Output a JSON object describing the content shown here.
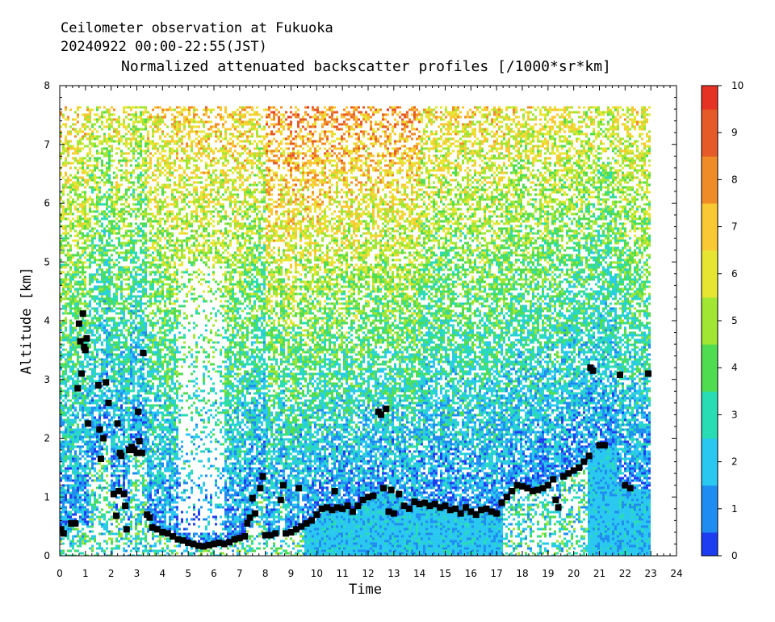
{
  "header": {
    "line1": "Ceilometer observation at Fukuoka",
    "line2": "20240922  00:00-22:55(JST)",
    "title": "Normalized attenuated backscatter profiles [/1000*sr*km]"
  },
  "chart_data": {
    "type": "heatmap",
    "title": "Normalized attenuated backscatter profiles [/1000*sr*km]",
    "xlabel": "Time",
    "ylabel": "Altitude [km]",
    "xlim": [
      0,
      24
    ],
    "ylim": [
      0,
      8
    ],
    "x_ticks": [
      "0",
      "1",
      "2",
      "3",
      "4",
      "5",
      "6",
      "7",
      "8",
      "9",
      "10",
      "11",
      "12",
      "13",
      "14",
      "15",
      "16",
      "17",
      "18",
      "19",
      "20",
      "21",
      "22",
      "23",
      "24"
    ],
    "y_ticks": [
      "0",
      "1",
      "2",
      "3",
      "4",
      "5",
      "6",
      "7",
      "8"
    ],
    "data_extent": {
      "x": [
        0,
        22.92
      ],
      "y": [
        0,
        7.65
      ]
    },
    "colorbar": {
      "range": [
        0,
        10
      ],
      "ticks": [
        "0",
        "1",
        "2",
        "3",
        "4",
        "5",
        "6",
        "7",
        "8",
        "9",
        "10"
      ],
      "colors": [
        "#1e3cf0",
        "#1e8cf0",
        "#28c8f0",
        "#28dcb4",
        "#50dc50",
        "#a0e632",
        "#e6e632",
        "#fac832",
        "#f08c28",
        "#e65a28",
        "#e63223"
      ]
    },
    "low_signal_colors": [
      "#ffffff",
      "#1e6ef0",
      "#28b4f0"
    ],
    "cloud_base_heights": [
      {
        "x": 0.05,
        "y": 0.45
      },
      {
        "x": 0.15,
        "y": 0.38
      },
      {
        "x": 0.45,
        "y": 0.55
      },
      {
        "x": 0.6,
        "y": 0.55
      },
      {
        "x": 0.7,
        "y": 2.85
      },
      {
        "x": 0.75,
        "y": 3.95
      },
      {
        "x": 0.8,
        "y": 3.65
      },
      {
        "x": 0.85,
        "y": 3.1
      },
      {
        "x": 0.9,
        "y": 4.12
      },
      {
        "x": 0.95,
        "y": 3.55
      },
      {
        "x": 1.0,
        "y": 3.5
      },
      {
        "x": 1.05,
        "y": 3.7
      },
      {
        "x": 1.1,
        "y": 2.25
      },
      {
        "x": 1.5,
        "y": 2.9
      },
      {
        "x": 1.55,
        "y": 2.15
      },
      {
        "x": 1.6,
        "y": 1.65
      },
      {
        "x": 1.7,
        "y": 2.0
      },
      {
        "x": 1.8,
        "y": 2.95
      },
      {
        "x": 1.9,
        "y": 2.6
      },
      {
        "x": 2.1,
        "y": 1.05
      },
      {
        "x": 2.2,
        "y": 0.68
      },
      {
        "x": 2.25,
        "y": 2.25
      },
      {
        "x": 2.3,
        "y": 1.1
      },
      {
        "x": 2.35,
        "y": 1.75
      },
      {
        "x": 2.4,
        "y": 1.7
      },
      {
        "x": 2.5,
        "y": 1.05
      },
      {
        "x": 2.55,
        "y": 0.85
      },
      {
        "x": 2.6,
        "y": 0.45
      },
      {
        "x": 2.7,
        "y": 1.8
      },
      {
        "x": 2.8,
        "y": 1.85
      },
      {
        "x": 2.9,
        "y": 1.8
      },
      {
        "x": 3.0,
        "y": 1.75
      },
      {
        "x": 3.05,
        "y": 2.45
      },
      {
        "x": 3.1,
        "y": 1.95
      },
      {
        "x": 3.2,
        "y": 1.75
      },
      {
        "x": 3.25,
        "y": 3.45
      },
      {
        "x": 3.4,
        "y": 0.7
      },
      {
        "x": 3.5,
        "y": 0.65
      },
      {
        "x": 3.6,
        "y": 0.48
      },
      {
        "x": 3.8,
        "y": 0.45
      },
      {
        "x": 4.0,
        "y": 0.4
      },
      {
        "x": 4.2,
        "y": 0.38
      },
      {
        "x": 4.4,
        "y": 0.33
      },
      {
        "x": 4.6,
        "y": 0.28
      },
      {
        "x": 4.8,
        "y": 0.26
      },
      {
        "x": 5.0,
        "y": 0.22
      },
      {
        "x": 5.2,
        "y": 0.2
      },
      {
        "x": 5.4,
        "y": 0.17
      },
      {
        "x": 5.6,
        "y": 0.16
      },
      {
        "x": 5.8,
        "y": 0.18
      },
      {
        "x": 6.0,
        "y": 0.2
      },
      {
        "x": 6.2,
        "y": 0.22
      },
      {
        "x": 6.4,
        "y": 0.2
      },
      {
        "x": 6.6,
        "y": 0.23
      },
      {
        "x": 6.8,
        "y": 0.28
      },
      {
        "x": 7.0,
        "y": 0.3
      },
      {
        "x": 7.2,
        "y": 0.33
      },
      {
        "x": 7.3,
        "y": 0.55
      },
      {
        "x": 7.4,
        "y": 0.65
      },
      {
        "x": 7.5,
        "y": 0.98
      },
      {
        "x": 7.6,
        "y": 0.72
      },
      {
        "x": 7.8,
        "y": 1.15
      },
      {
        "x": 7.9,
        "y": 1.35
      },
      {
        "x": 8.0,
        "y": 0.35
      },
      {
        "x": 8.2,
        "y": 0.35
      },
      {
        "x": 8.4,
        "y": 0.38
      },
      {
        "x": 8.6,
        "y": 0.95
      },
      {
        "x": 8.7,
        "y": 1.2
      },
      {
        "x": 8.8,
        "y": 0.38
      },
      {
        "x": 9.0,
        "y": 0.4
      },
      {
        "x": 9.2,
        "y": 0.45
      },
      {
        "x": 9.3,
        "y": 1.15
      },
      {
        "x": 9.4,
        "y": 0.5
      },
      {
        "x": 9.6,
        "y": 0.55
      },
      {
        "x": 9.8,
        "y": 0.6
      },
      {
        "x": 10.0,
        "y": 0.7
      },
      {
        "x": 10.2,
        "y": 0.8
      },
      {
        "x": 10.4,
        "y": 0.82
      },
      {
        "x": 10.6,
        "y": 0.78
      },
      {
        "x": 10.7,
        "y": 1.1
      },
      {
        "x": 10.8,
        "y": 0.82
      },
      {
        "x": 11.0,
        "y": 0.8
      },
      {
        "x": 11.2,
        "y": 0.85
      },
      {
        "x": 11.4,
        "y": 0.75
      },
      {
        "x": 11.6,
        "y": 0.85
      },
      {
        "x": 11.8,
        "y": 0.95
      },
      {
        "x": 12.0,
        "y": 1.0
      },
      {
        "x": 12.2,
        "y": 1.02
      },
      {
        "x": 12.4,
        "y": 2.45
      },
      {
        "x": 12.5,
        "y": 2.4
      },
      {
        "x": 12.6,
        "y": 1.15
      },
      {
        "x": 12.7,
        "y": 2.5
      },
      {
        "x": 12.8,
        "y": 0.75
      },
      {
        "x": 12.9,
        "y": 1.12
      },
      {
        "x": 13.0,
        "y": 0.72
      },
      {
        "x": 13.2,
        "y": 1.05
      },
      {
        "x": 13.4,
        "y": 0.85
      },
      {
        "x": 13.6,
        "y": 0.8
      },
      {
        "x": 13.8,
        "y": 0.92
      },
      {
        "x": 14.0,
        "y": 0.88
      },
      {
        "x": 14.2,
        "y": 0.9
      },
      {
        "x": 14.4,
        "y": 0.85
      },
      {
        "x": 14.6,
        "y": 0.88
      },
      {
        "x": 14.8,
        "y": 0.82
      },
      {
        "x": 15.0,
        "y": 0.85
      },
      {
        "x": 15.2,
        "y": 0.78
      },
      {
        "x": 15.4,
        "y": 0.8
      },
      {
        "x": 15.6,
        "y": 0.72
      },
      {
        "x": 15.8,
        "y": 0.82
      },
      {
        "x": 16.0,
        "y": 0.75
      },
      {
        "x": 16.2,
        "y": 0.7
      },
      {
        "x": 16.4,
        "y": 0.78
      },
      {
        "x": 16.6,
        "y": 0.8
      },
      {
        "x": 16.8,
        "y": 0.75
      },
      {
        "x": 17.0,
        "y": 0.72
      },
      {
        "x": 17.2,
        "y": 0.9
      },
      {
        "x": 17.4,
        "y": 1.0
      },
      {
        "x": 17.6,
        "y": 1.1
      },
      {
        "x": 17.8,
        "y": 1.2
      },
      {
        "x": 18.0,
        "y": 1.18
      },
      {
        "x": 18.2,
        "y": 1.15
      },
      {
        "x": 18.4,
        "y": 1.1
      },
      {
        "x": 18.6,
        "y": 1.12
      },
      {
        "x": 18.8,
        "y": 1.15
      },
      {
        "x": 19.0,
        "y": 1.2
      },
      {
        "x": 19.2,
        "y": 1.3
      },
      {
        "x": 19.3,
        "y": 0.95
      },
      {
        "x": 19.4,
        "y": 0.82
      },
      {
        "x": 19.6,
        "y": 1.35
      },
      {
        "x": 19.8,
        "y": 1.4
      },
      {
        "x": 20.0,
        "y": 1.45
      },
      {
        "x": 20.2,
        "y": 1.5
      },
      {
        "x": 20.4,
        "y": 1.6
      },
      {
        "x": 20.6,
        "y": 1.7
      },
      {
        "x": 20.65,
        "y": 3.2
      },
      {
        "x": 20.75,
        "y": 3.15
      },
      {
        "x": 21.0,
        "y": 1.88
      },
      {
        "x": 21.2,
        "y": 1.88
      },
      {
        "x": 21.8,
        "y": 3.08
      },
      {
        "x": 22.0,
        "y": 1.2
      },
      {
        "x": 22.2,
        "y": 1.15
      },
      {
        "x": 22.9,
        "y": 3.1
      }
    ]
  }
}
